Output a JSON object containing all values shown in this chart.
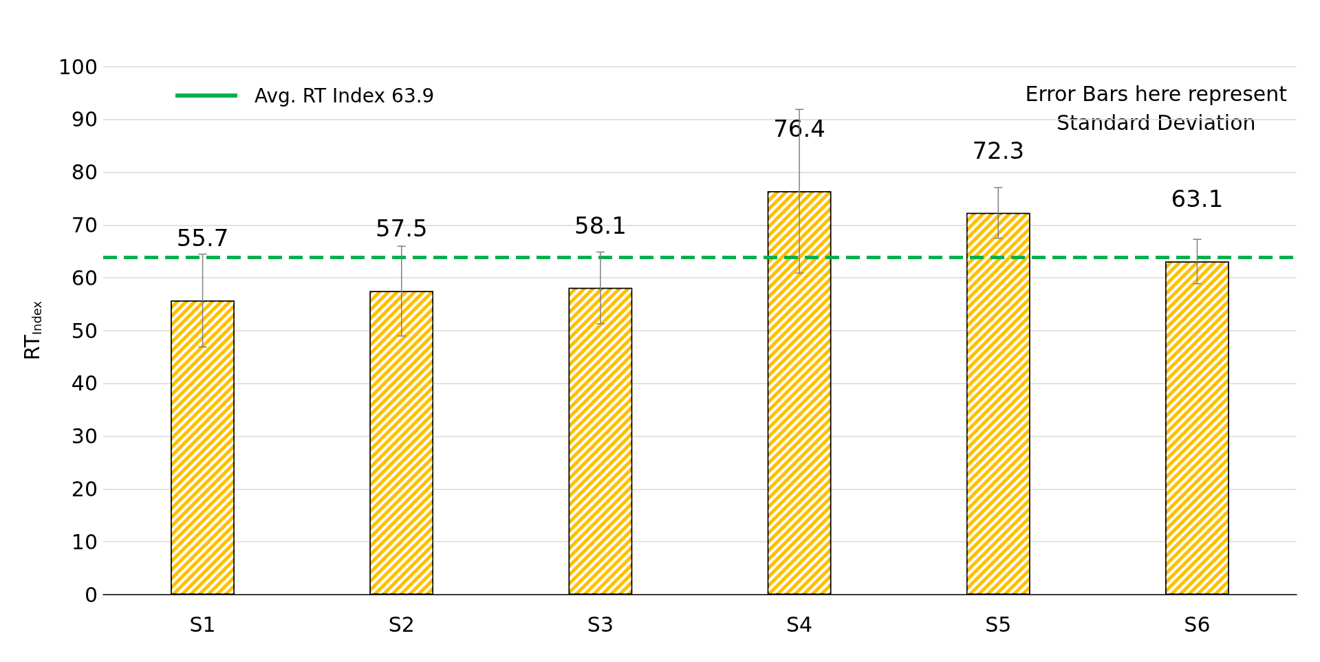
{
  "chart_data": {
    "type": "bar",
    "ylabel": "RT$_{Index}$",
    "categories": [
      "S1",
      "S2",
      "S3",
      "S4",
      "S5",
      "S6"
    ],
    "series": [
      {
        "color": "#ffc000",
        "values": [
          55.7,
          57.5,
          58.1,
          76.4,
          72.3,
          63.1
        ],
        "errors": [
          8.8,
          8.5,
          6.8,
          15.5,
          4.8,
          4.2
        ]
      }
    ],
    "data_labels": true,
    "ylim": [
      0,
      100
    ],
    "yticks": [
      0,
      10,
      20,
      30,
      40,
      50,
      60,
      70,
      80,
      90,
      100
    ],
    "grid": "y",
    "legend": "top left",
    "ref_lines": [
      {
        "axis": "y",
        "value": 63.9,
        "label": "Avg. RT Index 63.9",
        "color": "#00b050",
        "line_style": "dashed"
      }
    ],
    "annotations": [
      "Error Bars here represent\nStandard Deviation"
    ]
  }
}
